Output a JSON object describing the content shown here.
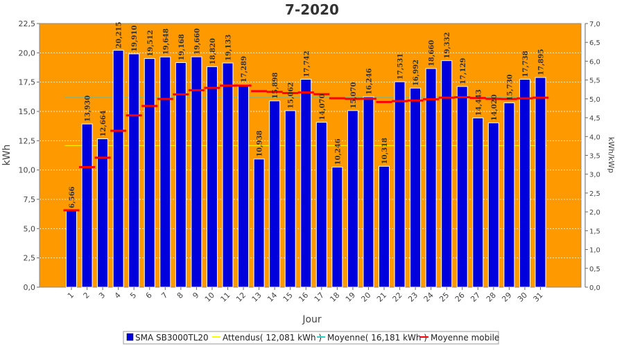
{
  "chart_data": {
    "type": "bar",
    "title": "7-2020",
    "xlabel": "Jour",
    "ylabel": "kWh",
    "y2label": "kWh/kWp",
    "ylim": [
      0,
      22.5
    ],
    "y2lim": [
      0,
      7.0
    ],
    "y_ticks": [
      "0,0",
      "2,5",
      "5,0",
      "7,5",
      "10,0",
      "12,5",
      "15,0",
      "17,5",
      "20,0",
      "22,5"
    ],
    "y2_ticks": [
      "0,0",
      "0,5",
      "1,0",
      "1,5",
      "2,0",
      "2,5",
      "3,0",
      "3,5",
      "4,0",
      "4,5",
      "5,0",
      "5,5",
      "6,0",
      "6,5",
      "7,0"
    ],
    "categories": [
      "1",
      "2",
      "3",
      "4",
      "5",
      "6",
      "7",
      "8",
      "9",
      "10",
      "11",
      "12",
      "13",
      "14",
      "15",
      "16",
      "17",
      "18",
      "19",
      "20",
      "21",
      "22",
      "23",
      "24",
      "25",
      "26",
      "27",
      "28",
      "29",
      "30",
      "31"
    ],
    "series": [
      {
        "name": "SMA SB3000TL20",
        "values": [
          6.566,
          13.93,
          12.664,
          20.215,
          19.91,
          19.512,
          19.648,
          19.168,
          19.66,
          18.82,
          19.133,
          17.289,
          10.938,
          15.898,
          15.062,
          17.742,
          14.07,
          10.246,
          15.07,
          16.246,
          10.318,
          17.531,
          16.992,
          18.66,
          19.332,
          17.129,
          14.443,
          14.02,
          15.73,
          17.738,
          17.895
        ],
        "labels": [
          "6,566",
          "13,930",
          "12,664",
          "20,215",
          "19,910",
          "19,512",
          "19,648",
          "19,168",
          "19,660",
          "18,820",
          "19,133",
          "17,289",
          "10,938",
          "15,898",
          "15,062",
          "17,742",
          "14,070",
          "10,246",
          "15,070",
          "16,246",
          "10,318",
          "17,531",
          "16,992",
          "18,660",
          "19,332",
          "17,129",
          "14,443",
          "14,020",
          "15,730",
          "17,738",
          "17,895"
        ],
        "color": "#0000dd"
      },
      {
        "name": "Moyenne mobile",
        "values": [
          6.566,
          10.248,
          11.053,
          13.344,
          14.657,
          15.466,
          16.064,
          16.453,
          16.809,
          17.01,
          17.203,
          17.21,
          16.727,
          16.668,
          16.562,
          16.618,
          16.468,
          16.123,
          16.068,
          16.077,
          15.803,
          15.882,
          15.931,
          16.042,
          16.174,
          16.21,
          16.145,
          16.069,
          16.058,
          16.114,
          16.171
        ],
        "color": "#ff0000"
      }
    ],
    "legend": [
      {
        "name": "SMA SB3000TL20",
        "color": "#0000dd",
        "kind": "box"
      },
      {
        "name": "Attendus( 12,081 kWh )",
        "color": "#ffff00",
        "kind": "line"
      },
      {
        "name": "Moyenne( 16,181 kWh )",
        "color": "#33cccc",
        "kind": "line"
      },
      {
        "name": "Moyenne mobile",
        "color": "#ff0000",
        "kind": "line"
      }
    ],
    "reference_lines": [
      {
        "name": "Attendus",
        "value": 12.081,
        "color": "#ffff00"
      },
      {
        "name": "Moyenne",
        "value": 16.181,
        "color": "#33cccc"
      }
    ],
    "legend_position": "bottom",
    "grid": true,
    "background_color": "#ff9900"
  }
}
